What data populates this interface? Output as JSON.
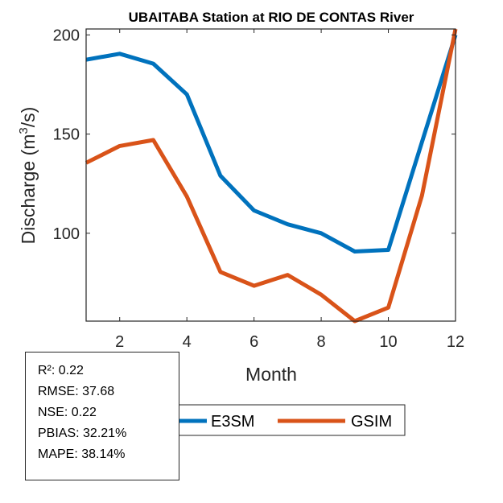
{
  "chart_data": {
    "type": "line",
    "title": "UBAITABA  Station at  RIO DE CONTAS  River",
    "xlabel": "Month",
    "ylabel": "Discharge (m",
    "ylabel_sup": "3",
    "ylabel_suffix": "/s)",
    "x": [
      1,
      2,
      3,
      4,
      5,
      6,
      7,
      8,
      9,
      10,
      11,
      12
    ],
    "xlim": [
      1,
      12
    ],
    "ylim": [
      55.7,
      203
    ],
    "xticks": [
      2,
      4,
      6,
      8,
      10,
      12
    ],
    "yticks": [
      100,
      150,
      200
    ],
    "grid": false,
    "series": [
      {
        "name": "E3SM",
        "color": "#0072BD",
        "values": [
          187.5,
          190.5,
          185.5,
          170,
          129,
          111.5,
          104.5,
          100,
          90.8,
          91.6,
          146,
          200
        ]
      },
      {
        "name": "GSIM",
        "color": "#D95319",
        "values": [
          135.5,
          144,
          147,
          118.5,
          80.5,
          73.5,
          79,
          69,
          55.7,
          62.5,
          119,
          203
        ]
      }
    ],
    "legend": {
      "placement": "bottom-center",
      "orientation": "horizontal",
      "entries": [
        "E3SM",
        "GSIM"
      ]
    }
  },
  "stats": {
    "lines": [
      "R²: 0.22",
      "RMSE: 37.68",
      "NSE: 0.22",
      "PBIAS: 32.21%",
      "MAPE: 38.14%"
    ]
  }
}
